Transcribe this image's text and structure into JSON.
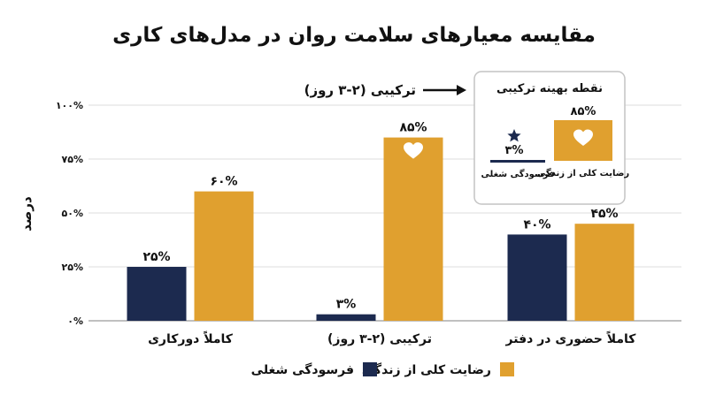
{
  "chart_data": {
    "type": "bar",
    "title": "مقایسه معیارهای سلامت روان در مدل‌های کاری",
    "ylabel": "درصد",
    "ylim": [
      0,
      100
    ],
    "yticks": [
      "۰%",
      "۲۵%",
      "۵۰%",
      "۷۵%",
      "۱۰۰%"
    ],
    "ytick_values": [
      0,
      25,
      50,
      75,
      100
    ],
    "grid": true,
    "categories": [
      "کاملاً دورکاری",
      "ترکیبی (۲-۳ روز)",
      "کاملاً حضوری در دفتر"
    ],
    "series": [
      {
        "name": "فرسودگی شغلی",
        "values": [
          25,
          3,
          40
        ],
        "labels": [
          "۲۵%",
          "۳%",
          "۴۰%"
        ],
        "color": "#1c2a4f"
      },
      {
        "name": "رضایت کلی از زندگی",
        "values": [
          60,
          85,
          45
        ],
        "labels": [
          "۶۰%",
          "۸۵%",
          "۴۵%"
        ],
        "color": "#e0a02f"
      }
    ],
    "legend_position": "bottom-center",
    "annotations": {
      "arrow_label": "ترکیبی (۲-۳ روز)",
      "callout": {
        "title": "نقطه بهینه ترکیبی",
        "satisfaction_value": "۸۵%",
        "satisfaction_label": "رضایت کلی از زندگی",
        "burnout_value": "۳%",
        "burnout_label": "فرسودگی شغلی"
      }
    }
  },
  "icons": [
    "heart-icon",
    "star-icon",
    "arrow-right-icon"
  ]
}
